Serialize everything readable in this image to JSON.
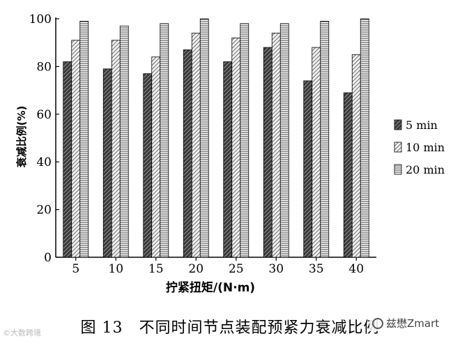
{
  "chart_data": {
    "type": "bar",
    "categories": [
      "5",
      "10",
      "15",
      "20",
      "25",
      "30",
      "35",
      "40"
    ],
    "series": [
      {
        "name": "5 min",
        "values": [
          82,
          79,
          77,
          87,
          82,
          88,
          74,
          69
        ],
        "pattern": "dark-hatch"
      },
      {
        "name": "10 min",
        "values": [
          91,
          91,
          84,
          94,
          92,
          94,
          88,
          85
        ],
        "pattern": "light-hatch"
      },
      {
        "name": "20 min",
        "values": [
          99,
          97,
          98,
          100,
          98,
          98,
          99,
          100
        ],
        "pattern": "horizontal-stripes"
      }
    ],
    "ylim": [
      0,
      100
    ],
    "yticks": [
      "0",
      "20",
      "40",
      "60",
      "80",
      "100"
    ],
    "ylabel": "衰减比例(%)",
    "xlabel": "拧紧扭矩/(N·m)",
    "legend_position": "right",
    "grid": false
  },
  "caption": "图 13　不同时间节点装配预紧力衰减比例",
  "watermark_left": "©大数跨境",
  "watermark_right": "兹懋Zmart"
}
